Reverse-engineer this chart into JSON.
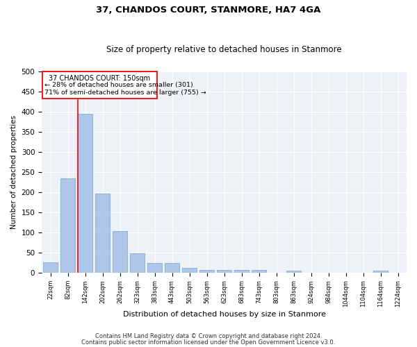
{
  "title": "37, CHANDOS COURT, STANMORE, HA7 4GA",
  "subtitle": "Size of property relative to detached houses in Stanmore",
  "xlabel": "Distribution of detached houses by size in Stanmore",
  "ylabel": "Number of detached properties",
  "categories": [
    "22sqm",
    "82sqm",
    "142sqm",
    "202sqm",
    "262sqm",
    "323sqm",
    "383sqm",
    "443sqm",
    "503sqm",
    "563sqm",
    "623sqm",
    "683sqm",
    "743sqm",
    "803sqm",
    "863sqm",
    "924sqm",
    "984sqm",
    "1044sqm",
    "1104sqm",
    "1164sqm",
    "1224sqm"
  ],
  "values": [
    27,
    235,
    395,
    197,
    104,
    48,
    25,
    25,
    12,
    8,
    8,
    8,
    8,
    0,
    6,
    0,
    0,
    0,
    0,
    5,
    0
  ],
  "bar_color": "#aec6e8",
  "bar_edgecolor": "#7aafd4",
  "redline_x": 2,
  "redline_label": "37 CHANDOS COURT: 150sqm",
  "annotation_line1": "← 28% of detached houses are smaller (301)",
  "annotation_line2": "71% of semi-detached houses are larger (755) →",
  "ylim": [
    0,
    500
  ],
  "yticks": [
    0,
    50,
    100,
    150,
    200,
    250,
    300,
    350,
    400,
    450,
    500
  ],
  "footer1": "Contains HM Land Registry data © Crown copyright and database right 2024.",
  "footer2": "Contains public sector information licensed under the Open Government Licence v3.0.",
  "bg_color": "#eef2f8"
}
